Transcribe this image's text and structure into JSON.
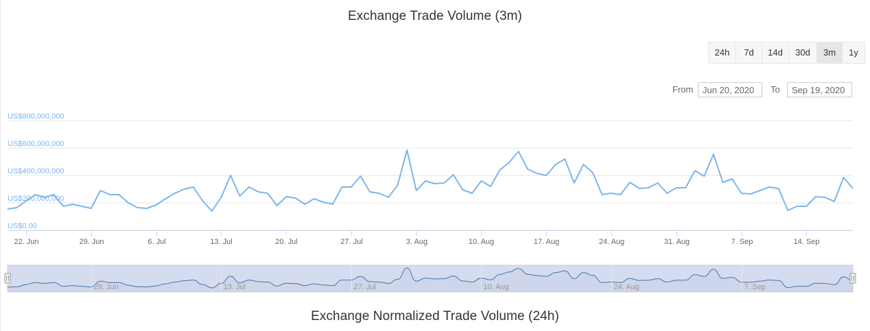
{
  "chart_title": "Exchange Trade Volume (3m)",
  "next_chart_title": "Exchange Normalized Trade Volume (24h)",
  "range_selector": {
    "buttons": [
      {
        "label": "24h",
        "active": false
      },
      {
        "label": "7d",
        "active": false
      },
      {
        "label": "14d",
        "active": false
      },
      {
        "label": "30d",
        "active": false
      },
      {
        "label": "3m",
        "active": true
      },
      {
        "label": "1y",
        "active": false
      }
    ]
  },
  "date_range": {
    "from_label": "From",
    "from_value": "Jun 20, 2020",
    "to_label": "To",
    "to_value": "Sep 19, 2020"
  },
  "colors": {
    "line": "#7cb5ec",
    "navigator_line": "#4572a7",
    "navigator_fill": "#d6dcef",
    "grid": "#e6e6e6",
    "axis_label": "#7cb5ec"
  },
  "chart_data": {
    "type": "line",
    "title": "Exchange Trade Volume (3m)",
    "x_start": "2020-06-20",
    "x_end": "2020-09-19",
    "ylim": [
      0,
      800000000
    ],
    "y_ticks": [
      "US$0.00",
      "US$200,000,000",
      "US$400,000,000",
      "US$600,000,000",
      "US$800,000,000"
    ],
    "x_ticks": [
      "22. Jun",
      "29. Jun",
      "6. Jul",
      "13. Jul",
      "20. Jul",
      "27. Jul",
      "3. Aug",
      "10. Aug",
      "17. Aug",
      "24. Aug",
      "31. Aug",
      "7. Sep",
      "14. Sep"
    ],
    "navigator_ticks": [
      "29. Jun",
      "13. Jul",
      "27. Jul",
      "10. Aug",
      "24. Aug",
      "7. Sep"
    ],
    "grid": true,
    "legend": "none",
    "series": [
      {
        "values": [
          155000000,
          165000000,
          215000000,
          260000000,
          240000000,
          260000000,
          175000000,
          190000000,
          175000000,
          160000000,
          290000000,
          260000000,
          260000000,
          200000000,
          165000000,
          160000000,
          185000000,
          230000000,
          270000000,
          300000000,
          315000000,
          215000000,
          140000000,
          240000000,
          400000000,
          250000000,
          315000000,
          280000000,
          270000000,
          180000000,
          245000000,
          235000000,
          190000000,
          230000000,
          205000000,
          190000000,
          315000000,
          315000000,
          395000000,
          280000000,
          270000000,
          240000000,
          330000000,
          585000000,
          290000000,
          360000000,
          340000000,
          345000000,
          405000000,
          295000000,
          270000000,
          360000000,
          320000000,
          440000000,
          495000000,
          575000000,
          445000000,
          415000000,
          400000000,
          480000000,
          520000000,
          345000000,
          480000000,
          420000000,
          260000000,
          270000000,
          260000000,
          350000000,
          305000000,
          310000000,
          345000000,
          270000000,
          310000000,
          310000000,
          435000000,
          395000000,
          555000000,
          350000000,
          375000000,
          270000000,
          265000000,
          290000000,
          315000000,
          305000000,
          145000000,
          175000000,
          175000000,
          245000000,
          240000000,
          210000000,
          385000000,
          305000000
        ]
      }
    ]
  }
}
